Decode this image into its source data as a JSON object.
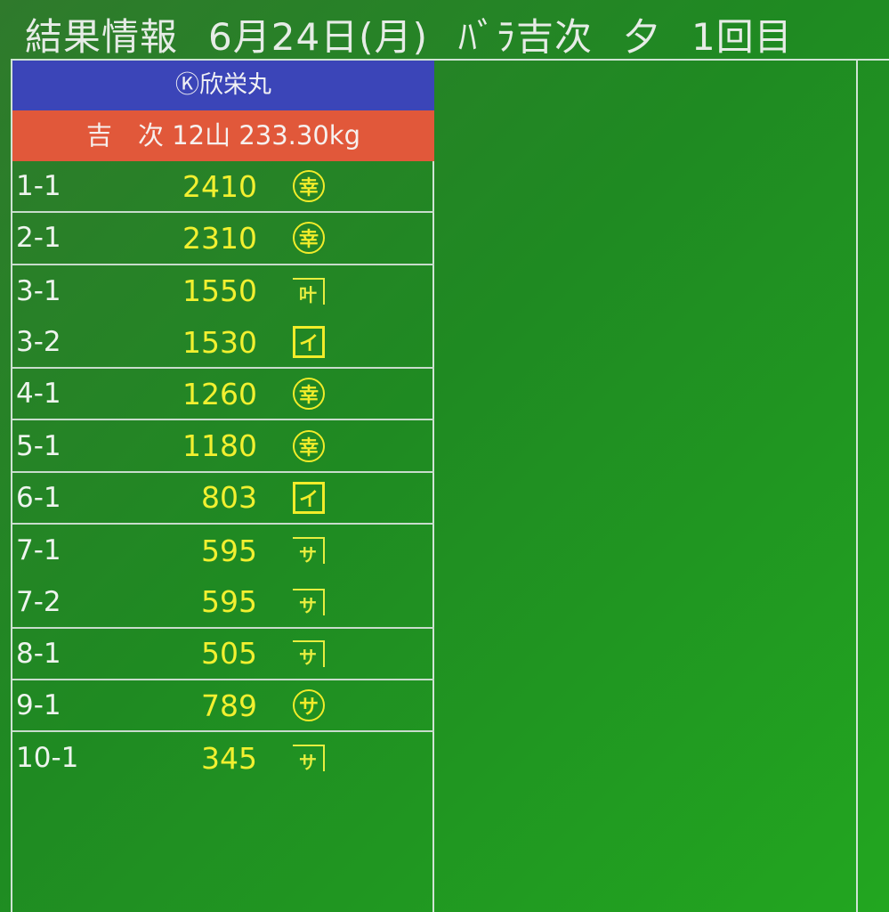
{
  "header": {
    "title": "結果情報",
    "date": "6月24日(月)",
    "category": "ﾊﾞﾗ吉次",
    "session": "夕",
    "round": "1回目"
  },
  "vessel": {
    "name": "Ⓚ欣栄丸",
    "summary": "吉　次 12山 233.30kg"
  },
  "colors": {
    "vessel_bg": "#3b45b8",
    "summary_bg": "#e1583a",
    "price": "#f2f030",
    "mark": "#f2ec2a"
  },
  "results": [
    {
      "lot": "1-1",
      "price": "2410",
      "mark": "幸",
      "mark_type": "circle",
      "sep": true
    },
    {
      "lot": "2-1",
      "price": "2310",
      "mark": "幸",
      "mark_type": "circle",
      "sep": true
    },
    {
      "lot": "3-1",
      "price": "1550",
      "mark": "叶",
      "mark_type": "roof",
      "sep": false
    },
    {
      "lot": "3-2",
      "price": "1530",
      "mark": "イ",
      "mark_type": "square",
      "sep": true
    },
    {
      "lot": "4-1",
      "price": "1260",
      "mark": "幸",
      "mark_type": "circle",
      "sep": true
    },
    {
      "lot": "5-1",
      "price": "1180",
      "mark": "幸",
      "mark_type": "circle",
      "sep": true
    },
    {
      "lot": "6-1",
      "price": "803",
      "mark": "イ",
      "mark_type": "square",
      "sep": true
    },
    {
      "lot": "7-1",
      "price": "595",
      "mark": "サ",
      "mark_type": "roof",
      "sep": false
    },
    {
      "lot": "7-2",
      "price": "595",
      "mark": "サ",
      "mark_type": "roof",
      "sep": true
    },
    {
      "lot": "8-1",
      "price": "505",
      "mark": "サ",
      "mark_type": "roof",
      "sep": true
    },
    {
      "lot": "9-1",
      "price": "789",
      "mark": "サ",
      "mark_type": "circle",
      "sep": true
    },
    {
      "lot": "10-1",
      "price": "345",
      "mark": "サ",
      "mark_type": "roof",
      "sep": false
    }
  ]
}
